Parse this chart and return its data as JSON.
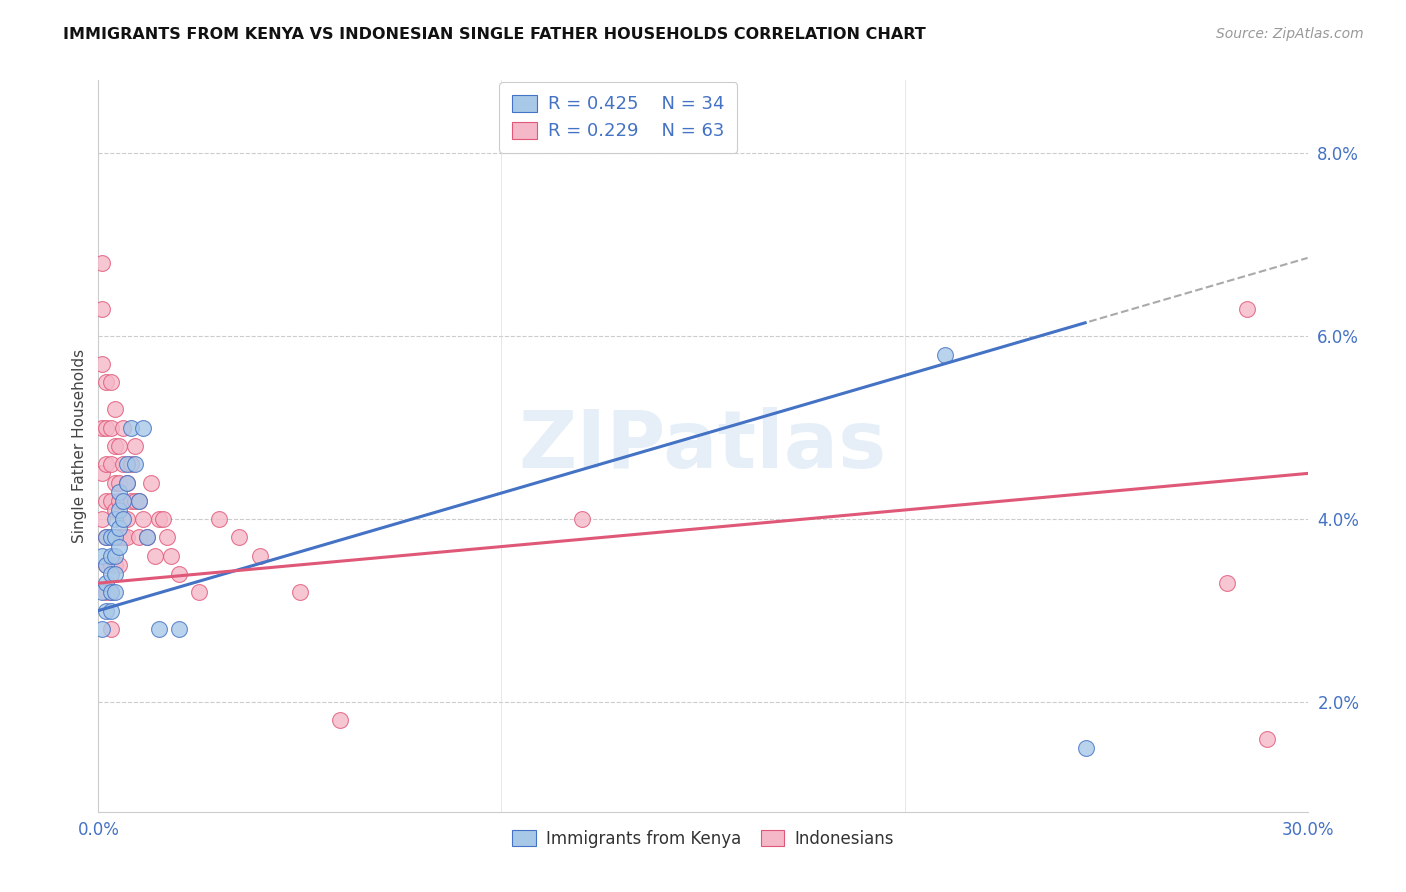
{
  "title": "IMMIGRANTS FROM KENYA VS INDONESIAN SINGLE FATHER HOUSEHOLDS CORRELATION CHART",
  "source": "Source: ZipAtlas.com",
  "ylabel": "Single Father Households",
  "ytick_vals": [
    0.02,
    0.04,
    0.06,
    0.08
  ],
  "ytick_labels": [
    "2.0%",
    "4.0%",
    "6.0%",
    "8.0%"
  ],
  "xlim": [
    0.0,
    0.3
  ],
  "ylim": [
    0.008,
    0.088
  ],
  "legend_labels": [
    "Immigrants from Kenya",
    "Indonesians"
  ],
  "blue_scatter_color": "#a8c8e8",
  "pink_scatter_color": "#f5b8c8",
  "blue_line_color": "#4472c4",
  "pink_line_color": "#e05878",
  "watermark": "ZIPatlas",
  "kenya_x": [
    0.001,
    0.001,
    0.001,
    0.002,
    0.002,
    0.002,
    0.002,
    0.003,
    0.003,
    0.003,
    0.003,
    0.003,
    0.004,
    0.004,
    0.004,
    0.004,
    0.004,
    0.005,
    0.005,
    0.005,
    0.005,
    0.006,
    0.006,
    0.007,
    0.007,
    0.008,
    0.009,
    0.01,
    0.011,
    0.012,
    0.015,
    0.02,
    0.21,
    0.245
  ],
  "kenya_y": [
    0.036,
    0.032,
    0.028,
    0.038,
    0.035,
    0.033,
    0.03,
    0.038,
    0.036,
    0.034,
    0.032,
    0.03,
    0.04,
    0.038,
    0.036,
    0.034,
    0.032,
    0.043,
    0.041,
    0.039,
    0.037,
    0.042,
    0.04,
    0.046,
    0.044,
    0.05,
    0.046,
    0.042,
    0.05,
    0.038,
    0.028,
    0.028,
    0.058,
    0.015
  ],
  "indonesia_x": [
    0.001,
    0.001,
    0.001,
    0.001,
    0.001,
    0.001,
    0.002,
    0.002,
    0.002,
    0.002,
    0.002,
    0.002,
    0.002,
    0.003,
    0.003,
    0.003,
    0.003,
    0.003,
    0.003,
    0.003,
    0.003,
    0.004,
    0.004,
    0.004,
    0.004,
    0.004,
    0.004,
    0.005,
    0.005,
    0.005,
    0.005,
    0.005,
    0.006,
    0.006,
    0.006,
    0.007,
    0.007,
    0.007,
    0.008,
    0.008,
    0.009,
    0.009,
    0.01,
    0.01,
    0.011,
    0.012,
    0.013,
    0.014,
    0.015,
    0.016,
    0.017,
    0.018,
    0.02,
    0.025,
    0.03,
    0.035,
    0.04,
    0.05,
    0.06,
    0.12,
    0.28,
    0.285,
    0.29
  ],
  "indonesia_y": [
    0.068,
    0.063,
    0.057,
    0.05,
    0.045,
    0.04,
    0.055,
    0.05,
    0.046,
    0.042,
    0.038,
    0.035,
    0.032,
    0.055,
    0.05,
    0.046,
    0.042,
    0.038,
    0.035,
    0.032,
    0.028,
    0.052,
    0.048,
    0.044,
    0.041,
    0.038,
    0.035,
    0.048,
    0.044,
    0.042,
    0.038,
    0.035,
    0.05,
    0.046,
    0.038,
    0.044,
    0.04,
    0.038,
    0.046,
    0.042,
    0.048,
    0.042,
    0.042,
    0.038,
    0.04,
    0.038,
    0.044,
    0.036,
    0.04,
    0.04,
    0.038,
    0.036,
    0.034,
    0.032,
    0.04,
    0.038,
    0.036,
    0.032,
    0.018,
    0.04,
    0.033,
    0.063,
    0.016
  ]
}
